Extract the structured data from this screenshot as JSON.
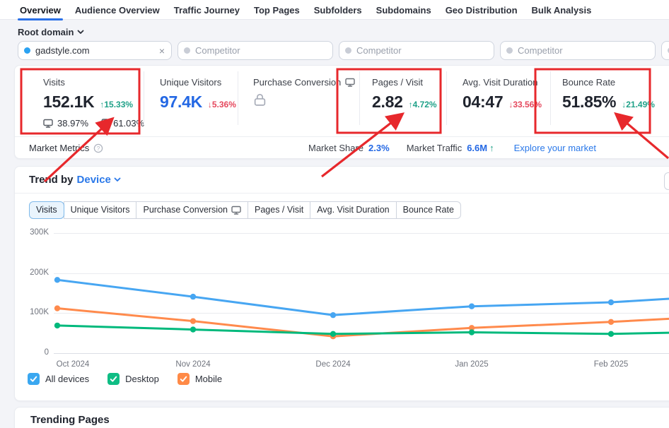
{
  "colors": {
    "accent": "#2970e8",
    "link_blue": "#2a78e9",
    "value_blue": "#2468e4",
    "good_green": "#1fa188",
    "bad_red": "#e5485d",
    "annotation_red": "#e7282c",
    "chart_blue": "#47a6f2",
    "chart_green": "#00b97c",
    "chart_orange": "#ff8a4c"
  },
  "nav": {
    "tabs": [
      {
        "label": "Overview",
        "active": true
      },
      {
        "label": "Audience Overview",
        "active": false
      },
      {
        "label": "Traffic Journey",
        "active": false
      },
      {
        "label": "Top Pages",
        "active": false
      },
      {
        "label": "Subfolders",
        "active": false
      },
      {
        "label": "Subdomains",
        "active": false
      },
      {
        "label": "Geo Distribution",
        "active": false
      },
      {
        "label": "Bulk Analysis",
        "active": false
      }
    ]
  },
  "scope_selector": {
    "label": "Root domain"
  },
  "domain_inputs": {
    "inputs": [
      {
        "kind": "domain",
        "value": "gadstyle.com",
        "dot_color": "#2ba2f2",
        "clearable": true
      },
      {
        "kind": "competitor",
        "placeholder": "Competitor",
        "dot_color": "#c9cdd6"
      },
      {
        "kind": "competitor",
        "placeholder": "Competitor",
        "dot_color": "#c9cdd6"
      },
      {
        "kind": "competitor",
        "placeholder": "Competitor",
        "dot_color": "#c9cdd6"
      },
      {
        "kind": "competitor-partial",
        "placeholder": "",
        "dot_color": "#c9cdd6"
      }
    ]
  },
  "metrics": [
    {
      "label": "Visits",
      "value": "152.1K",
      "value_color": "dark",
      "delta": {
        "arrow": "↑",
        "value": "15.33%",
        "tone": "positive"
      },
      "devices": {
        "desktop": "38.97%",
        "mobile": "61.03%"
      }
    },
    {
      "label": "Unique Visitors",
      "value": "97.4K",
      "value_color": "blue",
      "delta": {
        "arrow": "↓",
        "value": "5.36%",
        "tone": "negative"
      }
    },
    {
      "label": "Purchase Conversion",
      "desktop_only": true,
      "locked": true
    },
    {
      "label": "Pages / Visit",
      "value": "2.82",
      "value_color": "dark",
      "delta": {
        "arrow": "↑",
        "value": "4.72%",
        "tone": "positive"
      }
    },
    {
      "label": "Avg. Visit Duration",
      "value": "04:47",
      "value_color": "dark",
      "delta": {
        "arrow": "↓",
        "value": "33.56%",
        "tone": "negative"
      }
    },
    {
      "label": "Bounce Rate",
      "value": "51.85%",
      "value_color": "dark",
      "delta": {
        "arrow": "↓",
        "value": "21.49%",
        "tone": "positive"
      }
    }
  ],
  "market": {
    "title": "Market Metrics",
    "share_label": "Market Share",
    "share_value": "2.3%",
    "traffic_label": "Market Traffic",
    "traffic_value": "6.6M",
    "traffic_arrow": "↑",
    "link": "Explore your market"
  },
  "trend": {
    "title_prefix": "Trend by",
    "title_selector": "Device",
    "tabs": [
      {
        "label": "Visits",
        "active": true
      },
      {
        "label": "Unique Visitors",
        "active": false
      },
      {
        "label": "Purchase Conversion",
        "active": false,
        "desktop_icon": true
      },
      {
        "label": "Pages / Visit",
        "active": false
      },
      {
        "label": "Avg. Visit Duration",
        "active": false
      },
      {
        "label": "Bounce Rate",
        "active": false
      }
    ]
  },
  "chart_data": {
    "type": "line",
    "title": "Trend by Device — Visits",
    "categories": [
      "Oct 2024",
      "Nov 2024",
      "Dec 2024",
      "Jan 2025",
      "Feb 2025"
    ],
    "ylim": [
      0,
      300000
    ],
    "y_tick_labels": [
      "0",
      "100K",
      "200K",
      "300K"
    ],
    "grid": true,
    "legend_position": "bottom",
    "series": [
      {
        "name": "All devices",
        "color": "#47a6f2",
        "values": [
          183000,
          141000,
          95000,
          117000,
          127000
        ],
        "edge_value": 136000
      },
      {
        "name": "Mobile",
        "color": "#ff8a4c",
        "values": [
          112000,
          80000,
          42000,
          63000,
          78000
        ],
        "edge_value": 86000
      },
      {
        "name": "Desktop",
        "color": "#00b97c",
        "values": [
          69000,
          59000,
          48000,
          52000,
          48000
        ],
        "edge_value": 51000
      }
    ],
    "legend_order": [
      {
        "name": "All devices",
        "color": "#3aa7f0",
        "checked": true
      },
      {
        "name": "Desktop",
        "color": "#0fbd84",
        "checked": true
      },
      {
        "name": "Mobile",
        "color": "#ff8a47",
        "checked": true
      }
    ]
  },
  "trending_pages": {
    "title": "Trending Pages"
  },
  "annotations": {
    "color": "#e7282c",
    "highlighted_metrics": [
      "Visits",
      "Pages / Visit",
      "Bounce Rate"
    ]
  }
}
